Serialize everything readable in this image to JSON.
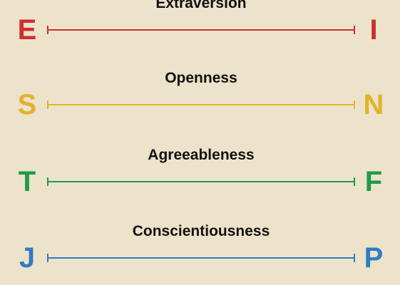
{
  "dimensions": [
    {
      "trait": "Extraversion",
      "left": "E",
      "right": "I",
      "color": "#cf2e2e"
    },
    {
      "trait": "Openness",
      "left": "S",
      "right": "N",
      "color": "#e2b22d"
    },
    {
      "trait": "Agreeableness",
      "left": "T",
      "right": "F",
      "color": "#1f9a4c"
    },
    {
      "trait": "Conscientiousness",
      "left": "J",
      "right": "P",
      "color": "#2f7dc2"
    }
  ]
}
